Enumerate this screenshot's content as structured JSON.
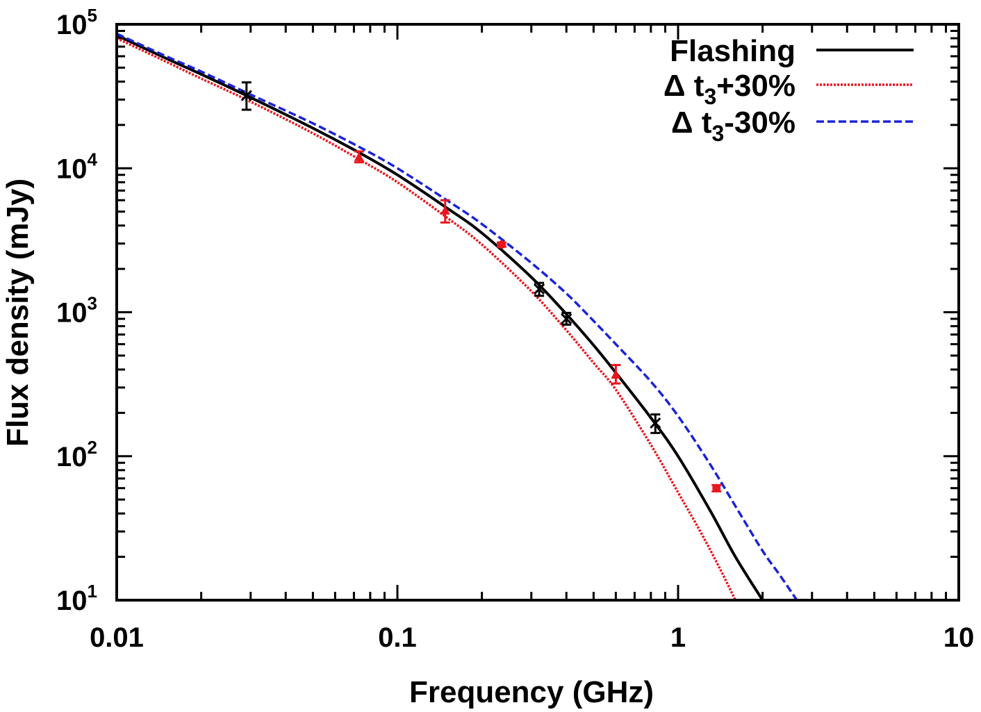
{
  "chart_data": {
    "type": "line",
    "xlabel": "Frequency (GHz)",
    "ylabel": "Flux density (mJy)",
    "xscale": "log",
    "yscale": "log",
    "xlim": [
      0.01,
      10
    ],
    "ylim": [
      10,
      100000
    ],
    "x_tick_labels": [
      "0.01",
      "0.1",
      "1",
      "10"
    ],
    "y_tick_labels": [
      {
        "base": "10",
        "exp": "1"
      },
      {
        "base": "10",
        "exp": "2"
      },
      {
        "base": "10",
        "exp": "3"
      },
      {
        "base": "10",
        "exp": "4"
      },
      {
        "base": "10",
        "exp": "5"
      }
    ],
    "legend_position": "top-right",
    "series": [
      {
        "name": "Flashing",
        "legend_main": "Flashing",
        "legend_sub": "",
        "legend_tail": "",
        "color": "#000000",
        "dash": "solid",
        "x": [
          0.01,
          0.015,
          0.02,
          0.03,
          0.05,
          0.075,
          0.1,
          0.15,
          0.2,
          0.3,
          0.4,
          0.5,
          0.6,
          0.8,
          1.0,
          1.3,
          1.6,
          2.0
        ],
        "y": [
          84000,
          58000,
          45000,
          31000,
          19000,
          12500,
          9000,
          5300,
          3550,
          1750,
          970,
          590,
          380,
          185,
          100,
          42,
          20,
          10
        ]
      },
      {
        "name": "Δ t3+30%",
        "legend_main": "Δ t",
        "legend_sub": "3",
        "legend_tail": "+30%",
        "color": "#e8161d",
        "dash": "dotted",
        "x": [
          0.01,
          0.015,
          0.02,
          0.03,
          0.05,
          0.075,
          0.1,
          0.15,
          0.2,
          0.3,
          0.4,
          0.5,
          0.6,
          0.8,
          1.0,
          1.2,
          1.4,
          1.6
        ],
        "y": [
          80000,
          55000,
          42000,
          29000,
          17500,
          11200,
          8000,
          4550,
          2950,
          1400,
          750,
          445,
          290,
          120,
          56,
          30,
          17,
          10
        ]
      },
      {
        "name": "Δ t3-30%",
        "legend_main": "Δ t",
        "legend_sub": "3",
        "legend_tail": "-30%",
        "color": "#1a23d9",
        "dash": "dashed",
        "x": [
          0.01,
          0.015,
          0.02,
          0.03,
          0.05,
          0.075,
          0.1,
          0.15,
          0.2,
          0.3,
          0.4,
          0.5,
          0.6,
          0.8,
          1.0,
          1.3,
          1.6,
          2.0,
          2.3,
          2.65
        ],
        "y": [
          86000,
          60000,
          47000,
          32500,
          20500,
          13700,
          10000,
          6000,
          4100,
          2200,
          1350,
          870,
          600,
          330,
          190,
          88,
          45,
          22,
          15,
          10
        ]
      }
    ],
    "data_points": [
      {
        "x": 0.029,
        "y": 32000,
        "err_low": 25500,
        "err_high": 39500,
        "color": "#000000",
        "marker": "x"
      },
      {
        "x": 0.073,
        "y": 12000,
        "err_low": 11000,
        "err_high": 13100,
        "color": "#e8161d",
        "marker": "triangle"
      },
      {
        "x": 0.148,
        "y": 5100,
        "err_low": 4200,
        "err_high": 6000,
        "color": "#e8161d",
        "marker": "triangle"
      },
      {
        "x": 0.235,
        "y": 2950,
        "err_low": 2850,
        "err_high": 3050,
        "color": "#e8161d",
        "marker": "circle"
      },
      {
        "x": 0.32,
        "y": 1450,
        "err_low": 1300,
        "err_high": 1600,
        "color": "#000000",
        "marker": "x"
      },
      {
        "x": 0.4,
        "y": 900,
        "err_low": 820,
        "err_high": 990,
        "color": "#000000",
        "marker": "x"
      },
      {
        "x": 0.6,
        "y": 370,
        "err_low": 320,
        "err_high": 430,
        "color": "#e8161d",
        "marker": "triangle"
      },
      {
        "x": 0.83,
        "y": 170,
        "err_low": 145,
        "err_high": 195,
        "color": "#000000",
        "marker": "x"
      },
      {
        "x": 1.37,
        "y": 60,
        "err_low": 57,
        "err_high": 63,
        "color": "#e8161d",
        "marker": "circle"
      }
    ]
  }
}
